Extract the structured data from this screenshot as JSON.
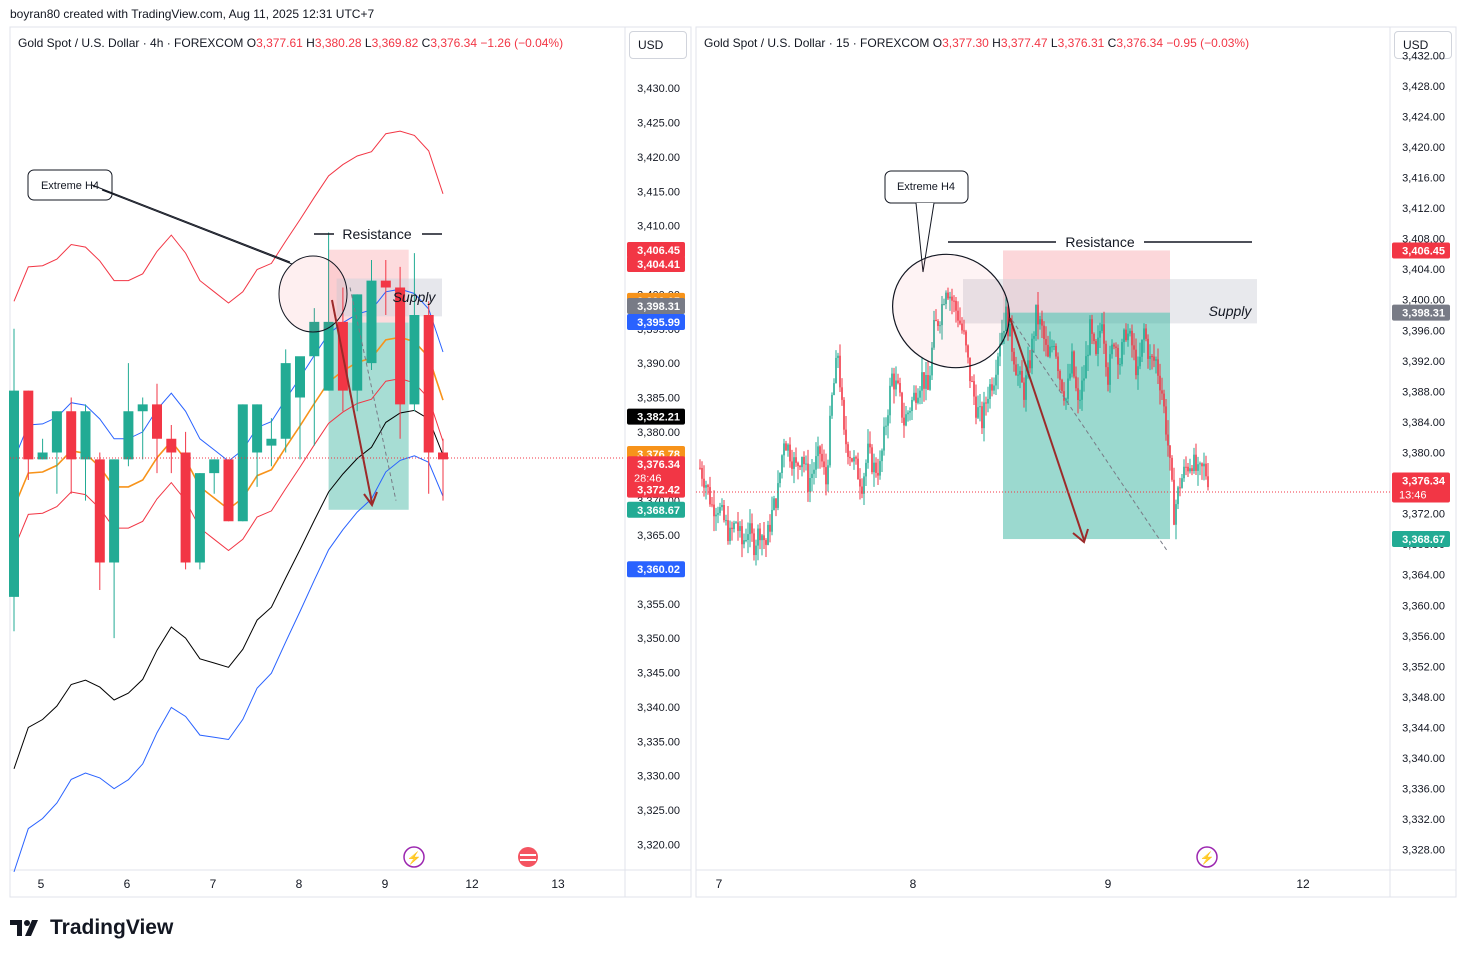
{
  "header": {
    "credit": "boyran80 created with TradingView.com, Aug 11, 2025 12:31 UTC+7"
  },
  "currency_label": "USD",
  "brand": {
    "name": "TradingView"
  },
  "colors": {
    "up": "#22ab94",
    "down": "#f23645",
    "supply": "#d1d4dc",
    "target": "#22ab94",
    "orange": "#f7931a",
    "blue": "#2962ff"
  },
  "left": {
    "title": {
      "symbol": "Gold Spot / U.S. Dollar · 4h · FOREXCOM",
      "o_label": "O",
      "o": "3,377.61",
      "h_label": "H",
      "h": "3,380.28",
      "l_label": "L",
      "l": "3,369.82",
      "c_label": "C",
      "c": "3,376.34",
      "chg": "−1.26 (−0.04%)"
    },
    "annotations": {
      "callout": "Extreme H4",
      "resistance": "Resistance",
      "supply": "Supply"
    },
    "price_tags": [
      {
        "text": "3,406.45",
        "price": 3406.45,
        "color": "#f23645"
      },
      {
        "text": "3,404.41",
        "price": 3404.41,
        "color": "#f23645"
      },
      {
        "text": "3,399.05",
        "price": 3399.05,
        "color": "#f7931a"
      },
      {
        "text": "3,398.31",
        "price": 3398.31,
        "color": "#787b86"
      },
      {
        "text": "3,395.99",
        "price": 3395.99,
        "color": "#2962ff"
      },
      {
        "text": "3,382.21",
        "price": 3382.21,
        "color": "#000000"
      },
      {
        "text": "3,376.78",
        "price": 3376.78,
        "color": "#f7931a"
      },
      {
        "text": "3,376.34",
        "price": 3375.3,
        "color": "#f23645",
        "sub": "28:46"
      },
      {
        "text": "3,372.42",
        "price": 3371.6,
        "color": "#f23645"
      },
      {
        "text": "3,368.67",
        "price": 3368.67,
        "color": "#22ab94"
      },
      {
        "text": "3,360.02",
        "price": 3360.02,
        "color": "#2962ff"
      }
    ]
  },
  "right": {
    "title": {
      "symbol": "Gold Spot / U.S. Dollar · 15 · FOREXCOM",
      "o_label": "O",
      "o": "3,377.30",
      "h_label": "H",
      "h": "3,377.47",
      "l_label": "L",
      "l": "3,376.31",
      "c_label": "C",
      "c": "3,376.34",
      "chg": "−0.95 (−0.03%)"
    },
    "annotations": {
      "callout": "Extreme H4",
      "resistance": "Resistance",
      "supply": "Supply"
    },
    "price_tags": [
      {
        "text": "3,406.45",
        "price": 3406.45,
        "color": "#f23645"
      },
      {
        "text": "3,398.31",
        "price": 3398.31,
        "color": "#787b86"
      },
      {
        "text": "3,376.34",
        "price": 3376.34,
        "color": "#f23645",
        "sub": "13:46"
      },
      {
        "text": "3,368.67",
        "price": 3368.67,
        "color": "#22ab94"
      }
    ]
  },
  "chart_data": [
    {
      "type": "candlestick",
      "title": "Gold Spot / U.S. Dollar · 4h · FOREXCOM",
      "ylim": [
        3317,
        3437
      ],
      "y_ticks": [
        "3,430.00",
        "3,425.00",
        "3,420.00",
        "3,415.00",
        "3,410.00",
        "3,405.00",
        "3,400.00",
        "3,395.00",
        "3,390.00",
        "3,385.00",
        "3,380.00",
        "3,375.00",
        "3,370.00",
        "3,365.00",
        "3,360.00",
        "3,355.00",
        "3,350.00",
        "3,345.00",
        "3,340.00",
        "3,335.00",
        "3,330.00",
        "3,325.00",
        "3,320.00"
      ],
      "x_ticks": [
        "5",
        "6",
        "7",
        "8",
        "9",
        "12",
        "13"
      ],
      "grid": false,
      "candles": [
        {
          "o": 3356,
          "h": 3395,
          "l": 3351,
          "c": 3386
        },
        {
          "o": 3386,
          "h": 3386,
          "l": 3373,
          "c": 3376
        },
        {
          "o": 3376,
          "h": 3379,
          "l": 3376,
          "c": 3377
        },
        {
          "o": 3377,
          "h": 3383,
          "l": 3371,
          "c": 3383
        },
        {
          "o": 3383,
          "h": 3385,
          "l": 3371,
          "c": 3376
        },
        {
          "o": 3376,
          "h": 3384,
          "l": 3370,
          "c": 3383
        },
        {
          "o": 3376,
          "h": 3377,
          "l": 3357,
          "c": 3361
        },
        {
          "o": 3361,
          "h": 3376,
          "l": 3350,
          "c": 3376
        },
        {
          "o": 3376,
          "h": 3390,
          "l": 3375,
          "c": 3383
        },
        {
          "o": 3383,
          "h": 3385,
          "l": 3376,
          "c": 3384
        },
        {
          "o": 3384,
          "h": 3387,
          "l": 3374,
          "c": 3379
        },
        {
          "o": 3379,
          "h": 3381,
          "l": 3374,
          "c": 3377
        },
        {
          "o": 3377,
          "h": 3380,
          "l": 3360,
          "c": 3361
        },
        {
          "o": 3361,
          "h": 3374,
          "l": 3360,
          "c": 3374
        },
        {
          "o": 3374,
          "h": 3376,
          "l": 3371,
          "c": 3376
        },
        {
          "o": 3376,
          "h": 3376,
          "l": 3367,
          "c": 3367
        },
        {
          "o": 3367,
          "h": 3384,
          "l": 3367,
          "c": 3384
        },
        {
          "o": 3377,
          "h": 3384,
          "l": 3372,
          "c": 3384
        },
        {
          "o": 3378,
          "h": 3382,
          "l": 3375,
          "c": 3379
        },
        {
          "o": 3379,
          "h": 3392,
          "l": 3377,
          "c": 3390
        },
        {
          "o": 3385,
          "h": 3390,
          "l": 3376,
          "c": 3391
        },
        {
          "o": 3391,
          "h": 3398,
          "l": 3378,
          "c": 3396
        },
        {
          "o": 3386,
          "h": 3409,
          "l": 3386,
          "c": 3396
        },
        {
          "o": 3396,
          "h": 3401,
          "l": 3383,
          "c": 3386
        },
        {
          "o": 3386,
          "h": 3400,
          "l": 3383,
          "c": 3400
        },
        {
          "o": 3390,
          "h": 3405,
          "l": 3389,
          "c": 3402
        },
        {
          "o": 3402,
          "h": 3405,
          "l": 3397,
          "c": 3401
        },
        {
          "o": 3401,
          "h": 3404,
          "l": 3379,
          "c": 3384
        },
        {
          "o": 3384,
          "h": 3406,
          "l": 3383,
          "c": 3397
        },
        {
          "o": 3397,
          "h": 3399,
          "l": 3371,
          "c": 3377
        },
        {
          "o": 3377,
          "h": 3379,
          "l": 3370,
          "c": 3376
        }
      ]
    },
    {
      "type": "candlestick",
      "title": "Gold Spot / U.S. Dollar · 15 · FOREXCOM",
      "ylim": [
        3326,
        3434
      ],
      "y_ticks": [
        "3,432.00",
        "3,428.00",
        "3,424.00",
        "3,420.00",
        "3,416.00",
        "3,412.00",
        "3,408.00",
        "3,404.00",
        "3,400.00",
        "3,396.00",
        "3,392.00",
        "3,388.00",
        "3,384.00",
        "3,380.00",
        "3,376.00",
        "3,372.00",
        "3,368.00",
        "3,364.00",
        "3,360.00",
        "3,356.00",
        "3,352.00",
        "3,348.00",
        "3,344.00",
        "3,340.00",
        "3,336.00",
        "3,332.00",
        "3,328.00"
      ],
      "x_ticks": [
        "7",
        "8",
        "9",
        "12"
      ],
      "grid": false,
      "path": [
        [
          0,
          3378
        ],
        [
          6,
          3376
        ],
        [
          12,
          3373
        ],
        [
          18,
          3373
        ],
        [
          24,
          3371
        ],
        [
          30,
          3369
        ],
        [
          36,
          3371
        ],
        [
          42,
          3368
        ],
        [
          48,
          3370
        ],
        [
          54,
          3368
        ],
        [
          60,
          3370
        ],
        [
          66,
          3368
        ],
        [
          72,
          3372
        ],
        [
          78,
          3375
        ],
        [
          84,
          3382
        ],
        [
          90,
          3380
        ],
        [
          96,
          3378
        ],
        [
          102,
          3380
        ],
        [
          108,
          3376
        ],
        [
          114,
          3378
        ],
        [
          120,
          3380
        ],
        [
          126,
          3376
        ],
        [
          132,
          3387
        ],
        [
          138,
          3393
        ],
        [
          144,
          3382
        ],
        [
          150,
          3380
        ],
        [
          156,
          3378
        ],
        [
          162,
          3376
        ],
        [
          168,
          3380
        ],
        [
          174,
          3378
        ],
        [
          180,
          3378
        ],
        [
          186,
          3384
        ],
        [
          192,
          3390
        ],
        [
          198,
          3388
        ],
        [
          204,
          3384
        ],
        [
          210,
          3386
        ],
        [
          216,
          3388
        ],
        [
          222,
          3390
        ],
        [
          228,
          3388
        ],
        [
          234,
          3396
        ],
        [
          240,
          3398
        ],
        [
          246,
          3402
        ],
        [
          252,
          3400
        ],
        [
          258,
          3398
        ],
        [
          264,
          3395
        ],
        [
          270,
          3390
        ],
        [
          276,
          3386
        ],
        [
          282,
          3384
        ],
        [
          288,
          3388
        ],
        [
          294,
          3390
        ],
        [
          300,
          3395
        ],
        [
          306,
          3398
        ],
        [
          312,
          3394
        ],
        [
          318,
          3390
        ],
        [
          324,
          3388
        ],
        [
          330,
          3392
        ],
        [
          336,
          3398
        ],
        [
          342,
          3396
        ],
        [
          348,
          3392
        ],
        [
          354,
          3395
        ],
        [
          360,
          3390
        ],
        [
          366,
          3387
        ],
        [
          372,
          3392
        ],
        [
          378,
          3386
        ],
        [
          384,
          3390
        ],
        [
          390,
          3396
        ],
        [
          396,
          3392
        ],
        [
          402,
          3398
        ],
        [
          408,
          3390
        ],
        [
          414,
          3395
        ],
        [
          420,
          3392
        ],
        [
          426,
          3396
        ],
        [
          432,
          3394
        ],
        [
          438,
          3390
        ],
        [
          444,
          3396
        ],
        [
          450,
          3392
        ],
        [
          456,
          3392
        ],
        [
          462,
          3388
        ],
        [
          468,
          3381
        ],
        [
          474,
          3372
        ],
        [
          480,
          3376
        ],
        [
          486,
          3378
        ],
        [
          492,
          3379
        ],
        [
          498,
          3377
        ],
        [
          504,
          3378
        ],
        [
          510,
          3376
        ]
      ]
    }
  ]
}
